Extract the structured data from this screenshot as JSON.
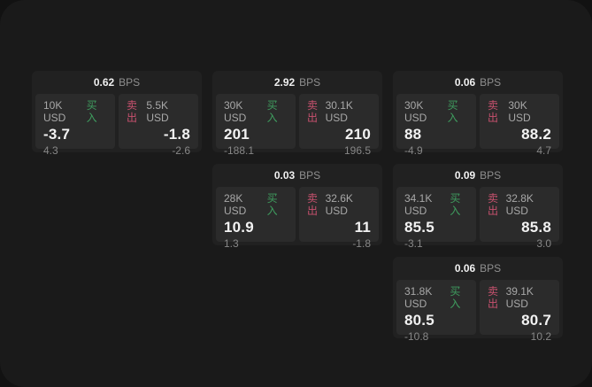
{
  "labels": {
    "bps_unit": "BPS",
    "buy": "买入",
    "sell": "卖出"
  },
  "colors": {
    "outer_background": "#121212",
    "window_background": "#1a1a1a",
    "card_background": "#212121",
    "panel_background": "#2b2b2b",
    "value_text": "#f2f2f2",
    "muted_text": "#a8a8a8",
    "dim_text": "#878787",
    "buy_accent": "#3f9e5f",
    "sell_accent": "#c7516e"
  },
  "cards": [
    {
      "row": 1,
      "col": 1,
      "bps": "0.62",
      "buy": {
        "amount": "10K USD",
        "value": "-3.7",
        "delta": "4.3"
      },
      "sell": {
        "amount": "5.5K USD",
        "value": "-1.8",
        "delta": "-2.6"
      }
    },
    {
      "row": 1,
      "col": 2,
      "bps": "2.92",
      "buy": {
        "amount": "30K USD",
        "value": "201",
        "delta": "-188.1"
      },
      "sell": {
        "amount": "30.1K USD",
        "value": "210",
        "delta": "196.5"
      }
    },
    {
      "row": 1,
      "col": 3,
      "bps": "0.06",
      "buy": {
        "amount": "30K USD",
        "value": "88",
        "delta": "-4.9"
      },
      "sell": {
        "amount": "30K USD",
        "value": "88.2",
        "delta": "4.7"
      }
    },
    {
      "row": 2,
      "col": 2,
      "bps": "0.03",
      "buy": {
        "amount": "28K USD",
        "value": "10.9",
        "delta": "1.3"
      },
      "sell": {
        "amount": "32.6K USD",
        "value": "11",
        "delta": "-1.8"
      }
    },
    {
      "row": 2,
      "col": 3,
      "bps": "0.09",
      "buy": {
        "amount": "34.1K USD",
        "value": "85.5",
        "delta": "-3.1"
      },
      "sell": {
        "amount": "32.8K USD",
        "value": "85.8",
        "delta": "3.0"
      }
    },
    {
      "row": 3,
      "col": 3,
      "bps": "0.06",
      "buy": {
        "amount": "31.8K USD",
        "value": "80.5",
        "delta": "-10.8"
      },
      "sell": {
        "amount": "39.1K USD",
        "value": "80.7",
        "delta": "10.2"
      }
    }
  ]
}
